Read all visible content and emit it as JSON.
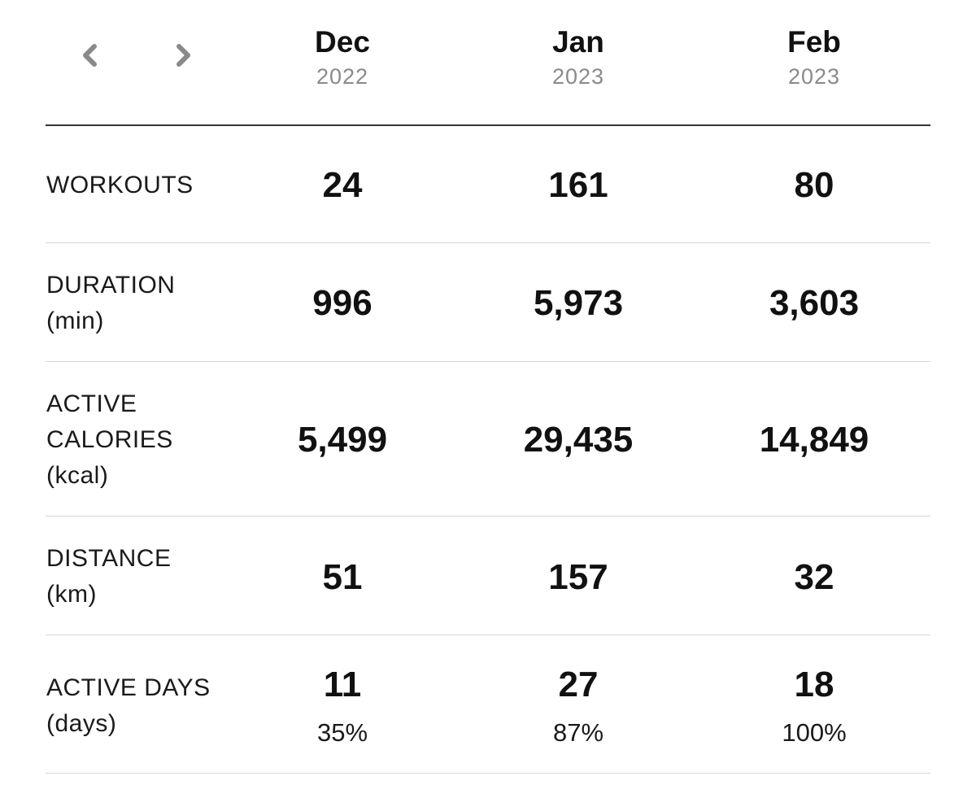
{
  "nav": {
    "prev_icon": "chevron-left-icon",
    "next_icon": "chevron-right-icon",
    "icon_color": "#8a8a8a"
  },
  "months": [
    {
      "name": "Dec",
      "year": "2022"
    },
    {
      "name": "Jan",
      "year": "2023"
    },
    {
      "name": "Feb",
      "year": "2023"
    }
  ],
  "rows": [
    {
      "label_lines": [
        "WORKOUTS"
      ],
      "values": [
        "24",
        "161",
        "80"
      ]
    },
    {
      "label_lines": [
        "DURATION",
        "(min)"
      ],
      "values": [
        "996",
        "5,973",
        "3,603"
      ]
    },
    {
      "label_lines": [
        "ACTIVE",
        "CALORIES",
        "(kcal)"
      ],
      "values": [
        "5,499",
        "29,435",
        "14,849"
      ]
    },
    {
      "label_lines": [
        "DISTANCE",
        "(km)"
      ],
      "values": [
        "51",
        "157",
        "32"
      ]
    },
    {
      "label_lines": [
        "ACTIVE DAYS",
        "(days)"
      ],
      "values": [
        "11",
        "27",
        "18"
      ],
      "sub_values": [
        "35%",
        "87%",
        "100%"
      ]
    }
  ]
}
